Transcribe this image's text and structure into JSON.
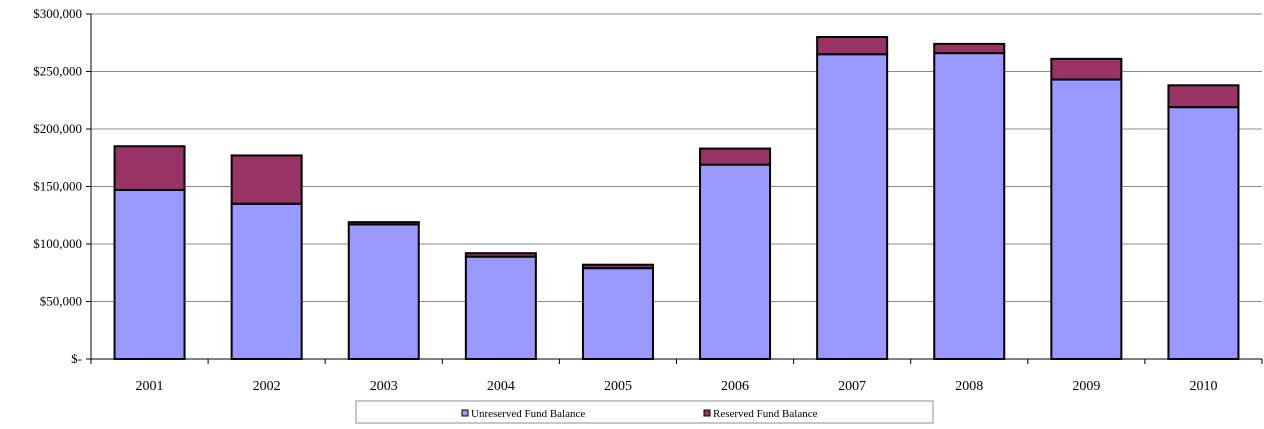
{
  "chart_data": {
    "type": "bar",
    "stacked": true,
    "categories": [
      "2001",
      "2002",
      "2003",
      "2004",
      "2005",
      "2006",
      "2007",
      "2008",
      "2009",
      "2010"
    ],
    "series": [
      {
        "name": "Unreserved Fund Balance",
        "color": "#9999ff",
        "values": [
          147000,
          135000,
          117000,
          89000,
          79000,
          169000,
          265000,
          266000,
          243000,
          219000
        ]
      },
      {
        "name": "Reserved Fund Balance",
        "color": "#993366",
        "values": [
          38000,
          42000,
          2000,
          3000,
          3000,
          14000,
          15000,
          8000,
          18000,
          19000
        ]
      }
    ],
    "y_ticks": [
      0,
      50000,
      100000,
      150000,
      200000,
      250000,
      300000
    ],
    "y_tick_labels": [
      "$-",
      "$50,000",
      "$100,000",
      "$150,000",
      "$200,000",
      "$250,000",
      "$300,000"
    ],
    "ylim": [
      0,
      300000
    ],
    "grid": true,
    "legend_position": "bottom"
  }
}
